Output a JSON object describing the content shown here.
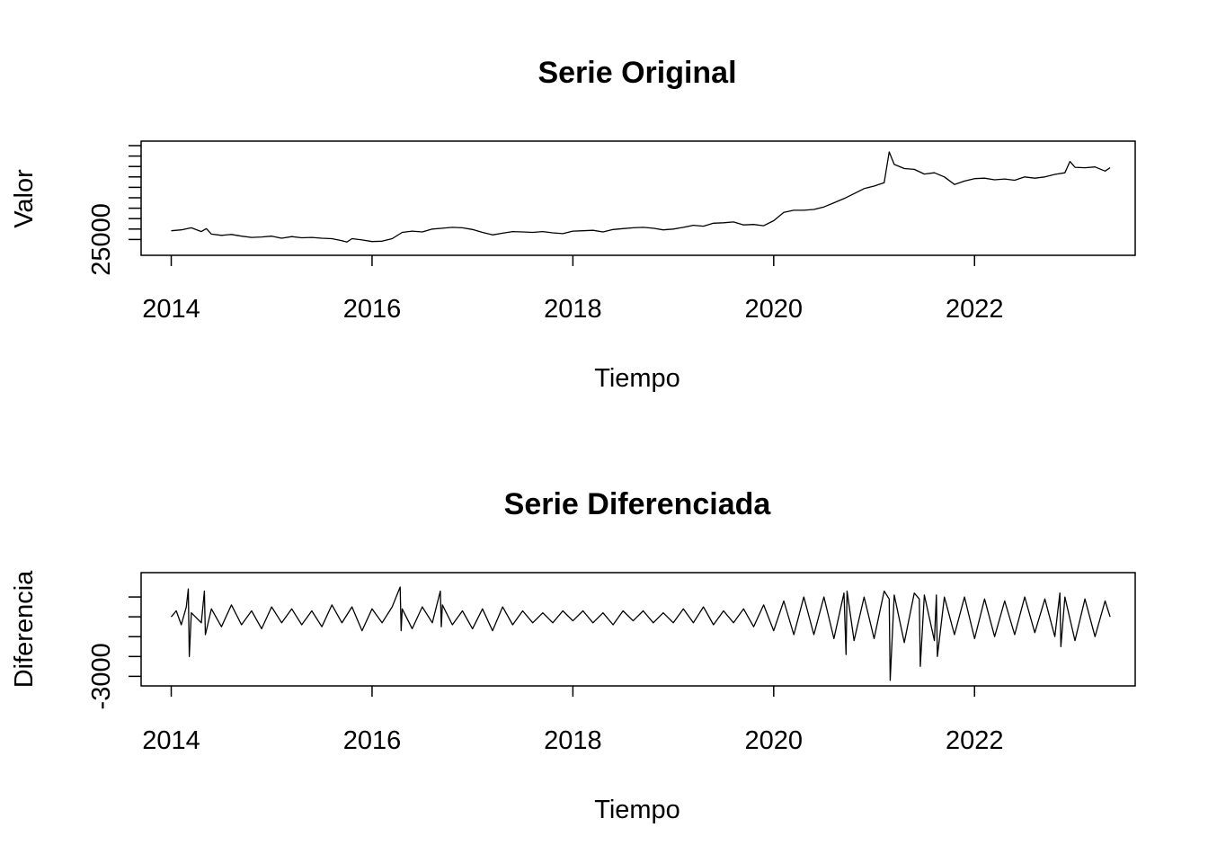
{
  "chart_data": [
    {
      "type": "line",
      "title": "Serie Original",
      "xlabel": "Tiempo",
      "ylabel": "Valor",
      "xlim": [
        2013.7,
        2023.6
      ],
      "ylim": [
        22500,
        47500
      ],
      "x_ticks": [
        2014,
        2016,
        2018,
        2020,
        2022
      ],
      "x_tick_labels": [
        "2014",
        "2016",
        "2018",
        "2020",
        "2022"
      ],
      "y_ticks": [
        25000,
        27500,
        30000,
        32500,
        35000,
        37500,
        40000,
        42500,
        45000,
        47500
      ],
      "y_tick_labels": [
        "25000",
        "",
        "",
        "",
        "",
        "",
        "",
        "",
        "",
        ""
      ],
      "grid": false,
      "series": [
        {
          "x": [
            2014.0,
            2014.1,
            2014.2,
            2014.3,
            2014.35,
            2014.4,
            2014.5,
            2014.6,
            2014.7,
            2014.8,
            2014.9,
            2015.0,
            2015.1,
            2015.2,
            2015.3,
            2015.4,
            2015.5,
            2015.6,
            2015.7,
            2015.75,
            2015.8,
            2015.9,
            2016.0,
            2016.1,
            2016.2,
            2016.3,
            2016.4,
            2016.5,
            2016.6,
            2016.7,
            2016.8,
            2016.9,
            2017.0,
            2017.1,
            2017.2,
            2017.3,
            2017.4,
            2017.5,
            2017.6,
            2017.7,
            2017.8,
            2017.9,
            2018.0,
            2018.1,
            2018.2,
            2018.3,
            2018.4,
            2018.5,
            2018.6,
            2018.7,
            2018.8,
            2018.9,
            2019.0,
            2019.1,
            2019.2,
            2019.3,
            2019.4,
            2019.5,
            2019.6,
            2019.7,
            2019.8,
            2019.9,
            2020.0,
            2020.1,
            2020.2,
            2020.3,
            2020.4,
            2020.5,
            2020.6,
            2020.7,
            2020.8,
            2020.9,
            2021.0,
            2021.1,
            2021.15,
            2021.2,
            2021.3,
            2021.4,
            2021.5,
            2021.6,
            2021.7,
            2021.8,
            2021.9,
            2022.0,
            2022.1,
            2022.2,
            2022.3,
            2022.4,
            2022.5,
            2022.6,
            2022.7,
            2022.8,
            2022.9,
            2022.95,
            2023.0,
            2023.1,
            2023.2,
            2023.3,
            2023.35
          ],
          "y": [
            27100,
            27300,
            27800,
            26900,
            27600,
            26300,
            26000,
            26200,
            25800,
            25500,
            25600,
            25800,
            25300,
            25700,
            25400,
            25500,
            25300,
            25200,
            24700,
            24400,
            25200,
            24900,
            24500,
            24600,
            25200,
            26700,
            27000,
            26800,
            27500,
            27700,
            27900,
            27800,
            27400,
            26700,
            26100,
            26500,
            26900,
            26800,
            26700,
            26900,
            26600,
            26400,
            27000,
            27100,
            27200,
            26800,
            27400,
            27600,
            27800,
            27900,
            27700,
            27300,
            27500,
            27900,
            28400,
            28200,
            28900,
            29000,
            29200,
            28500,
            28600,
            28300,
            29500,
            31500,
            32000,
            32000,
            32200,
            32800,
            33800,
            34800,
            36000,
            37200,
            37800,
            38600,
            46000,
            43000,
            42000,
            41800,
            40700,
            41000,
            40000,
            38200,
            39000,
            39600,
            39700,
            39300,
            39500,
            39200,
            40000,
            39700,
            40000,
            40600,
            41000,
            43700,
            42300,
            42200,
            42400,
            41400,
            42200
          ]
        }
      ]
    },
    {
      "type": "line",
      "title": "Serie Diferenciada",
      "xlabel": "Tiempo",
      "ylabel": "Diferencia",
      "xlim": [
        2013.7,
        2023.6
      ],
      "ylim": [
        -3300,
        2000
      ],
      "x_ticks": [
        2014,
        2016,
        2018,
        2020,
        2022
      ],
      "x_tick_labels": [
        "2014",
        "2016",
        "2018",
        "2020",
        "2022"
      ],
      "y_ticks": [
        -3000,
        -2000,
        -1000,
        0,
        1000
      ],
      "y_tick_labels": [
        "-3000",
        "",
        "",
        "",
        ""
      ],
      "grid": false,
      "series": [
        {
          "x": [
            2014.0,
            2014.05,
            2014.1,
            2014.15,
            2014.17,
            2014.18,
            2014.2,
            2014.3,
            2014.33,
            2014.34,
            2014.4,
            2014.5,
            2014.6,
            2014.7,
            2014.8,
            2014.9,
            2015.0,
            2015.1,
            2015.2,
            2015.3,
            2015.4,
            2015.5,
            2015.6,
            2015.7,
            2015.8,
            2015.9,
            2016.0,
            2016.1,
            2016.2,
            2016.28,
            2016.29,
            2016.3,
            2016.4,
            2016.5,
            2016.6,
            2016.68,
            2016.69,
            2016.7,
            2016.8,
            2016.9,
            2017.0,
            2017.1,
            2017.2,
            2017.3,
            2017.4,
            2017.5,
            2017.6,
            2017.7,
            2017.8,
            2017.9,
            2018.0,
            2018.1,
            2018.2,
            2018.3,
            2018.4,
            2018.5,
            2018.6,
            2018.7,
            2018.8,
            2018.9,
            2019.0,
            2019.1,
            2019.2,
            2019.3,
            2019.4,
            2019.5,
            2019.6,
            2019.7,
            2019.8,
            2019.9,
            2020.0,
            2020.1,
            2020.2,
            2020.3,
            2020.4,
            2020.5,
            2020.6,
            2020.7,
            2020.72,
            2020.73,
            2020.8,
            2020.9,
            2021.0,
            2021.1,
            2021.15,
            2021.16,
            2021.2,
            2021.3,
            2021.4,
            2021.45,
            2021.46,
            2021.5,
            2021.6,
            2021.62,
            2021.63,
            2021.7,
            2021.8,
            2021.9,
            2022.0,
            2022.1,
            2022.2,
            2022.3,
            2022.4,
            2022.5,
            2022.6,
            2022.7,
            2022.8,
            2022.85,
            2022.86,
            2022.9,
            2023.0,
            2023.1,
            2023.2,
            2023.3,
            2023.35
          ],
          "y": [
            0,
            300,
            -400,
            500,
            1400,
            -2000,
            200,
            -300,
            1300,
            -900,
            400,
            -500,
            600,
            -400,
            300,
            -600,
            500,
            -300,
            400,
            -400,
            300,
            -500,
            600,
            -300,
            500,
            -700,
            400,
            -300,
            500,
            1500,
            -700,
            400,
            -600,
            500,
            -300,
            1300,
            -500,
            600,
            -400,
            300,
            -600,
            400,
            -700,
            500,
            -400,
            300,
            -300,
            200,
            -300,
            300,
            -200,
            300,
            -300,
            200,
            -400,
            300,
            -200,
            300,
            -300,
            200,
            -300,
            400,
            -300,
            500,
            -400,
            300,
            -300,
            400,
            -500,
            600,
            -700,
            800,
            -900,
            1000,
            -900,
            1000,
            -1100,
            1200,
            -1900,
            1300,
            -1200,
            1000,
            -1100,
            1300,
            900,
            -3200,
            1100,
            -1300,
            1200,
            900,
            -2500,
            1100,
            -1200,
            1100,
            -2000,
            1000,
            -900,
            1000,
            -1100,
            900,
            -1000,
            800,
            -900,
            1000,
            -800,
            900,
            -1000,
            1200,
            -1500,
            1000,
            -1200,
            900,
            -1000,
            800,
            0
          ]
        }
      ]
    }
  ]
}
